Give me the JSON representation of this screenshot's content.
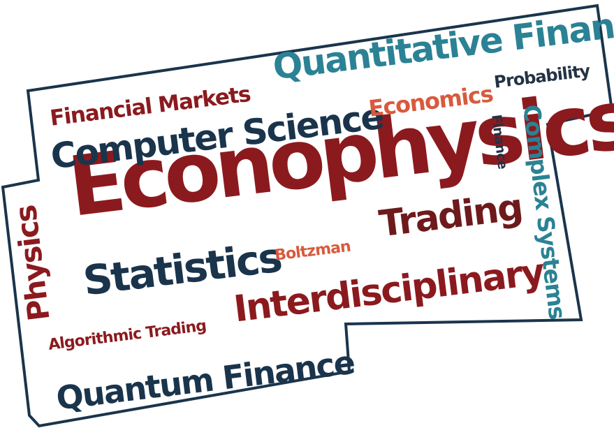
{
  "words": {
    "econophysics": "Econophysics",
    "quantitative_finance": "Quantitative Finance",
    "computer_science": "Computer Science",
    "financial_markets": "Financial Markets",
    "economics": "Economics",
    "probability": "Probability",
    "finance": "Finance",
    "complex_systems": "Complex Systems",
    "physics": "Physics",
    "trading": "Trading",
    "statistics": "Statistics",
    "boltzman": "Boltzman",
    "interdisciplinary": "Interdisciplinary",
    "algorithmic_trading": "Algorithmic Trading",
    "quantum_finance": "Quantum Finance"
  },
  "colors": {
    "red": "#8b1a1e",
    "navy": "#1a344c",
    "teal": "#2b8294",
    "orange": "#d85a3e",
    "border": "#1a344c"
  }
}
